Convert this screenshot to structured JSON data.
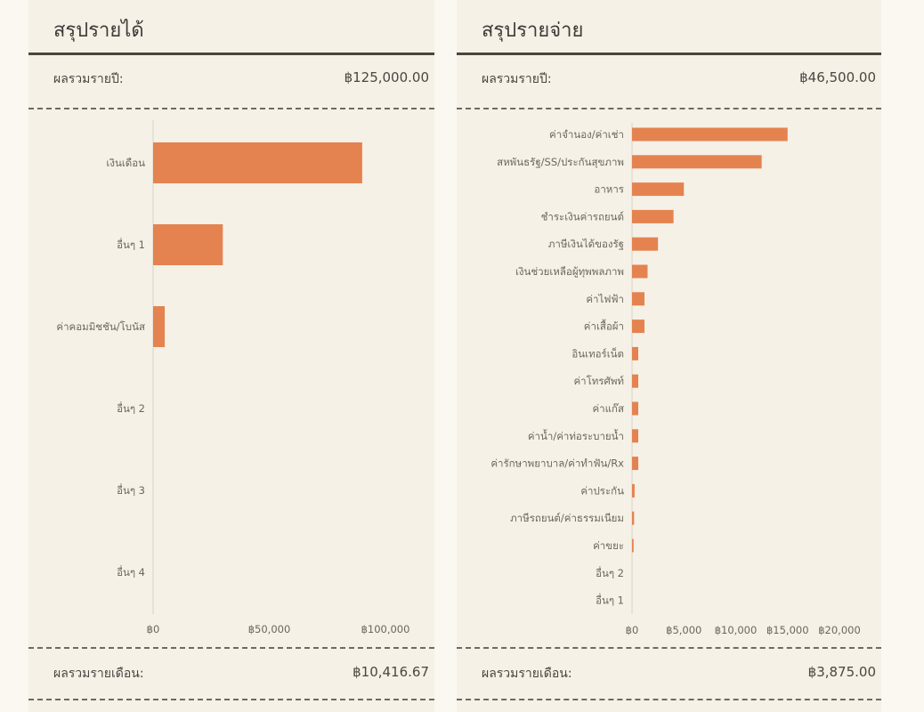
{
  "income": {
    "title": "สรุปรายได้",
    "annual_label": "ผลรวมรายปี:",
    "annual_value": "฿125,000.00",
    "monthly_label": "ผลรวมรายเดือน:",
    "monthly_value": "฿10,416.67"
  },
  "expense": {
    "title": "สรุปรายจ่าย",
    "annual_label": "ผลรวมรายปี:",
    "annual_value": "฿46,500.00",
    "monthly_label": "ผลรวมรายเดือน:",
    "monthly_value": "฿3,875.00"
  },
  "colors": {
    "bar": "#e4834f",
    "axis": "#d8d3c8"
  },
  "chart_data": [
    {
      "type": "bar",
      "orientation": "horizontal",
      "categories": [
        "เงินเดือน",
        "อื่นๆ 1",
        "ค่าคอมมิชชัน/โบนัส",
        "อื่นๆ 2",
        "อื่นๆ 3",
        "อื่นๆ 4"
      ],
      "values": [
        90000,
        30000,
        5000,
        0,
        0,
        0
      ],
      "xlim": [
        0,
        110000
      ],
      "xticks": [
        0,
        50000,
        100000
      ],
      "xtick_labels": [
        "฿0",
        "฿50,000",
        "฿100,000"
      ],
      "grid": false
    },
    {
      "type": "bar",
      "orientation": "horizontal",
      "categories": [
        "ค่าจำนอง/ค่าเช่า",
        "สหพันธรัฐ/SS/ประกันสุขภาพ",
        "อาหาร",
        "ชำระเงินค่ารถยนต์",
        "ภาษีเงินได้ของรัฐ",
        "เงินช่วยเหลือผู้ทุพพลภาพ",
        "ค่าไฟฟ้า",
        "ค่าเสื้อผ้า",
        "อินเทอร์เน็ต",
        "ค่าโทรศัพท์",
        "ค่าแก๊ส",
        "ค่าน้ำ/ค่าท่อระบายน้ำ",
        "ค่ารักษาพยาบาล/ค่าทำฟัน/Rx",
        "ค่าประกัน",
        "ภาษีรถยนต์/ค่าธรรมเนียม",
        "ค่าขยะ",
        "อื่นๆ 2",
        "อื่นๆ 1"
      ],
      "values": [
        15000,
        12500,
        5000,
        4000,
        2500,
        1500,
        1200,
        1200,
        600,
        600,
        600,
        600,
        600,
        250,
        200,
        150,
        0,
        0
      ],
      "xlim": [
        0,
        22000
      ],
      "xticks": [
        0,
        5000,
        10000,
        15000,
        20000
      ],
      "xtick_labels": [
        "฿0",
        "฿5,000",
        "฿10,000",
        "฿15,000",
        "฿20,000"
      ],
      "grid": false
    }
  ]
}
